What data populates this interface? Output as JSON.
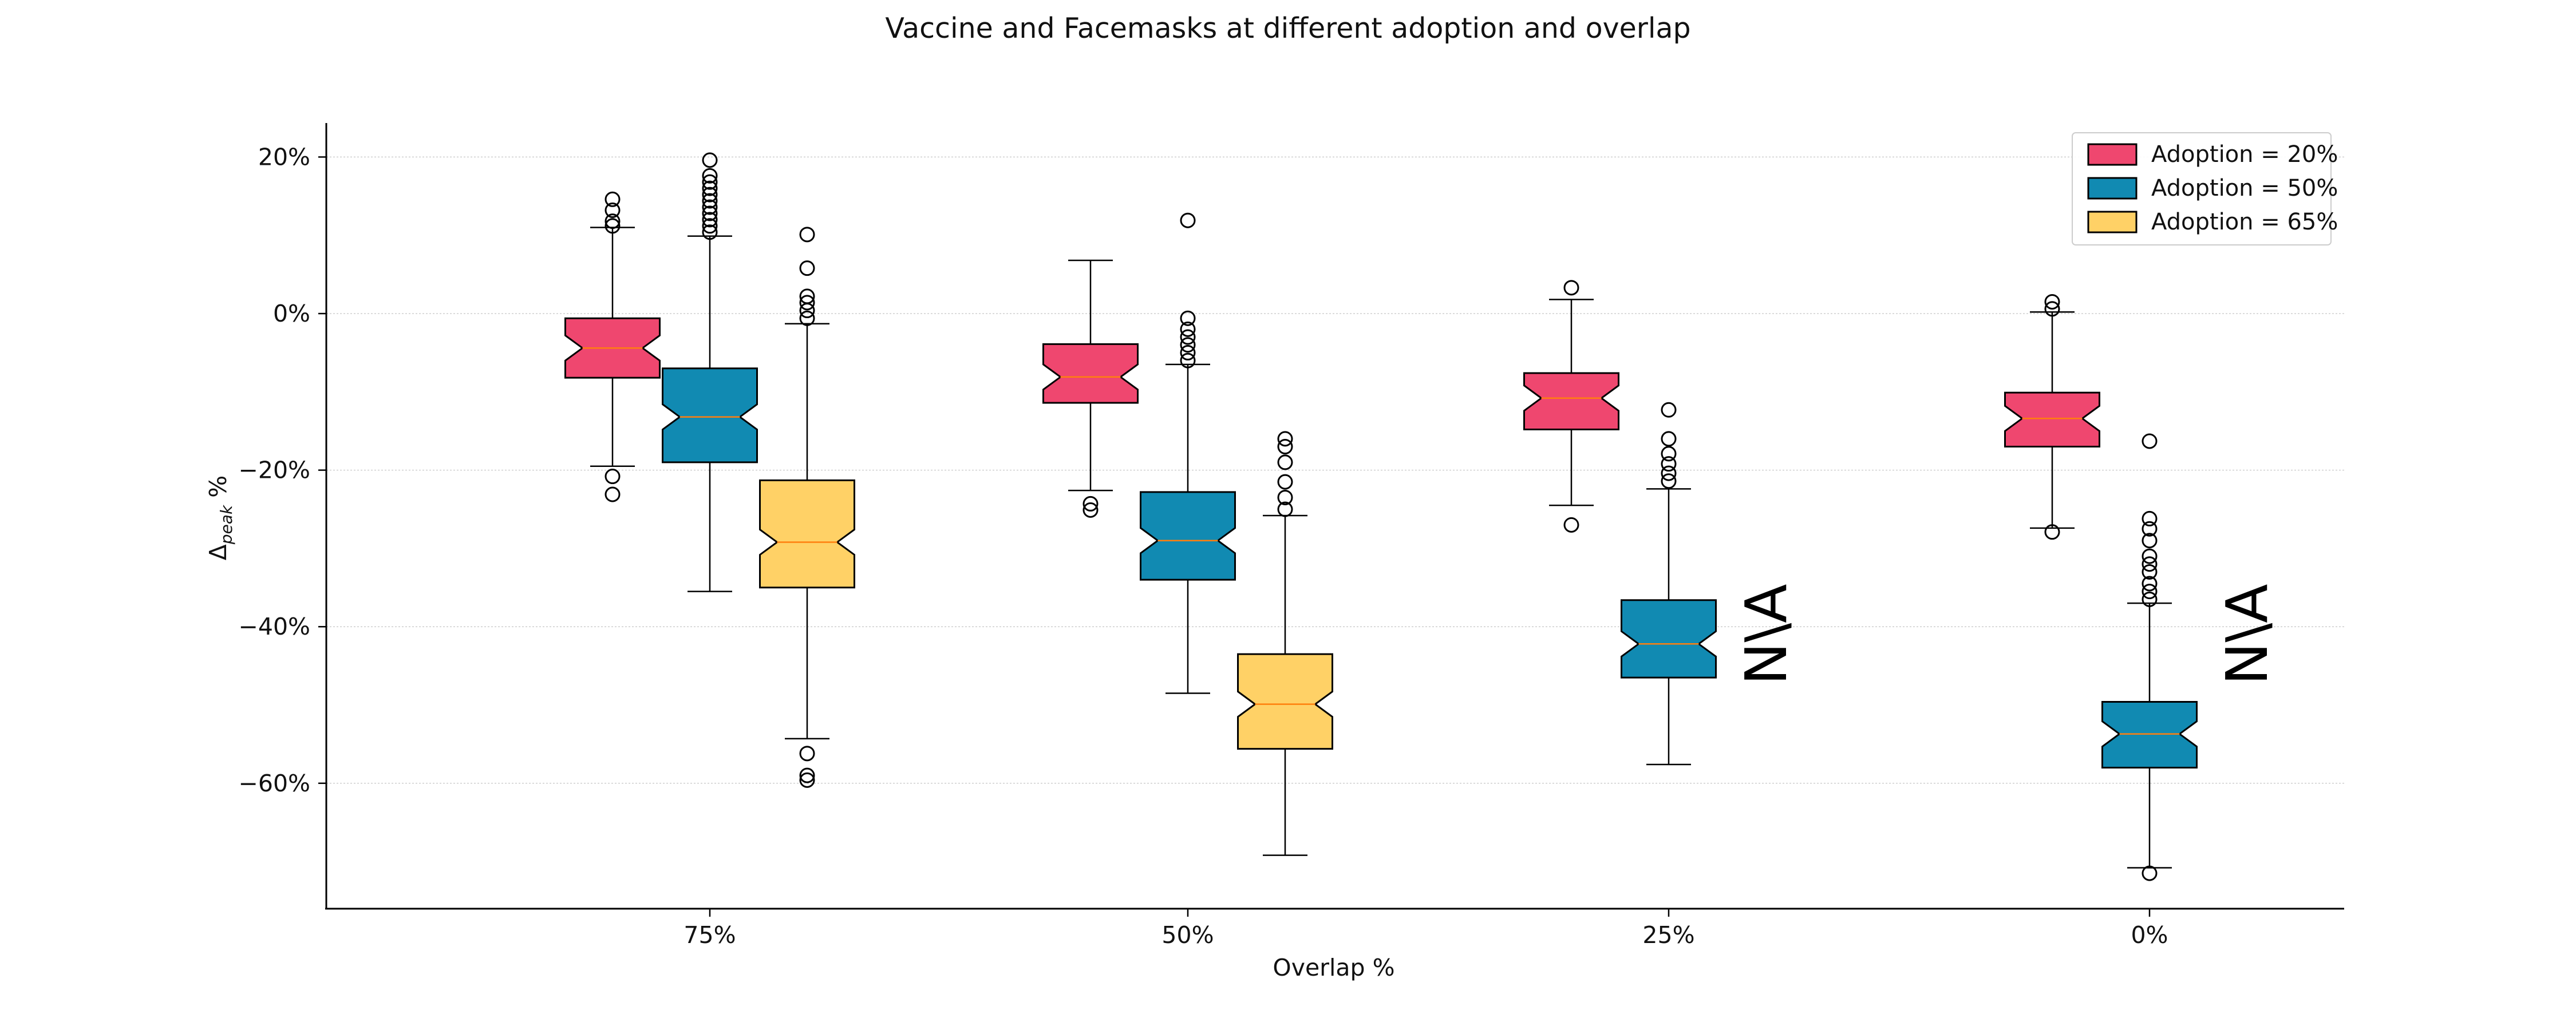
{
  "chart_data": {
    "type": "box",
    "title": "Vaccine and Facemasks at different adoption and overlap",
    "xlabel": "Overlap %",
    "ylabel_main": "Δ",
    "ylabel_sub": "peak",
    "ylabel_unit": " %",
    "ylim": [
      -76,
      24
    ],
    "yticks": [
      20,
      0,
      -20,
      -40,
      -60
    ],
    "ytick_labels": [
      "20%",
      "0%",
      "−20%",
      "−40%",
      "−60%"
    ],
    "grid": "horizontal",
    "notched": true,
    "legend_position": "top-right",
    "categories": [
      "75%",
      "50%",
      "25%",
      "0%"
    ],
    "missing_label": "N\\A",
    "series": [
      {
        "name": "Adoption = 20%",
        "color": "#ef476f",
        "boxes": [
          {
            "whislo": -19.5,
            "q1": -8.2,
            "med": -4.4,
            "q3": -0.6,
            "whishi": 11.0,
            "fliers": [
              -20.8,
              -23.1,
              11.2,
              11.8,
              13.2,
              14.6
            ]
          },
          {
            "whislo": -22.6,
            "q1": -11.4,
            "med": -8.1,
            "q3": -3.9,
            "whishi": 6.8,
            "fliers": [
              -24.3,
              -25.1
            ]
          },
          {
            "whislo": -24.5,
            "q1": -14.8,
            "med": -10.8,
            "q3": -7.6,
            "whishi": 1.8,
            "fliers": [
              -27.0,
              3.3
            ]
          },
          {
            "whislo": -27.4,
            "q1": -17.0,
            "med": -13.4,
            "q3": -10.1,
            "whishi": 0.2,
            "fliers": [
              -27.9,
              0.6,
              1.5
            ]
          }
        ]
      },
      {
        "name": "Adoption = 50%",
        "color": "#118ab2",
        "boxes": [
          {
            "whislo": -35.5,
            "q1": -19.0,
            "med": -13.2,
            "q3": -7.0,
            "whishi": 9.9,
            "fliers": [
              10.4,
              11.2,
              12.0,
              12.8,
              13.6,
              14.4,
              15.2,
              16.0,
              16.8,
              17.6,
              19.6
            ]
          },
          {
            "whislo": -48.5,
            "q1": -34.0,
            "med": -29.0,
            "q3": -22.8,
            "whishi": -6.5,
            "fliers": [
              -6.0,
              -5.0,
              -4.0,
              -3.0,
              -2.0,
              -0.6,
              11.9
            ]
          },
          {
            "whislo": -57.6,
            "q1": -46.5,
            "med": -42.2,
            "q3": -36.6,
            "whishi": -22.4,
            "fliers": [
              -21.4,
              -20.4,
              -19.2,
              -17.9,
              -16.0,
              -12.3
            ]
          },
          {
            "whislo": -70.8,
            "q1": -58.0,
            "med": -53.7,
            "q3": -49.6,
            "whishi": -37.0,
            "fliers": [
              -36.5,
              -35.5,
              -34.5,
              -33.0,
              -32.0,
              -31.0,
              -29.0,
              -27.5,
              -26.2,
              -16.3,
              -71.5
            ]
          }
        ]
      },
      {
        "name": "Adoption = 65%",
        "color": "#ffd166",
        "boxes": [
          {
            "whislo": -54.3,
            "q1": -35.0,
            "med": -29.2,
            "q3": -21.3,
            "whishi": -1.3,
            "fliers": [
              -56.2,
              -59.0,
              -59.6,
              -0.6,
              0.4,
              1.4,
              2.2,
              5.8,
              10.1
            ]
          },
          {
            "whislo": -69.2,
            "q1": -55.6,
            "med": -49.9,
            "q3": -43.5,
            "whishi": -25.8,
            "fliers": [
              -25.0,
              -23.5,
              -21.5,
              -19.0,
              -17.0,
              -16.0
            ]
          },
          null,
          null
        ]
      }
    ]
  }
}
